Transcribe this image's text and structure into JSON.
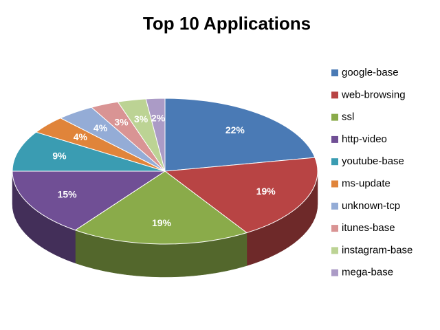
{
  "chart_data": {
    "type": "pie",
    "title": "Top 10 Applications",
    "categories": [
      "google-base",
      "web-browsing",
      "ssl",
      "http-video",
      "youtube-base",
      "ms-update",
      "unknown-tcp",
      "itunes-base",
      "instagram-base",
      "mega-base"
    ],
    "values": [
      22,
      19,
      19,
      15,
      9,
      4,
      4,
      3,
      3,
      2
    ],
    "value_labels": [
      "22%",
      "19%",
      "19%",
      "15%",
      "9%",
      "4%",
      "4%",
      "3%",
      "3%",
      "2%"
    ],
    "colors": [
      "#4a7ab5",
      "#b84444",
      "#8aab4a",
      "#704f95",
      "#3a9cb2",
      "#e0843a",
      "#94acd6",
      "#d99494",
      "#bcd394",
      "#ab9bc6"
    ],
    "legend": "right"
  }
}
